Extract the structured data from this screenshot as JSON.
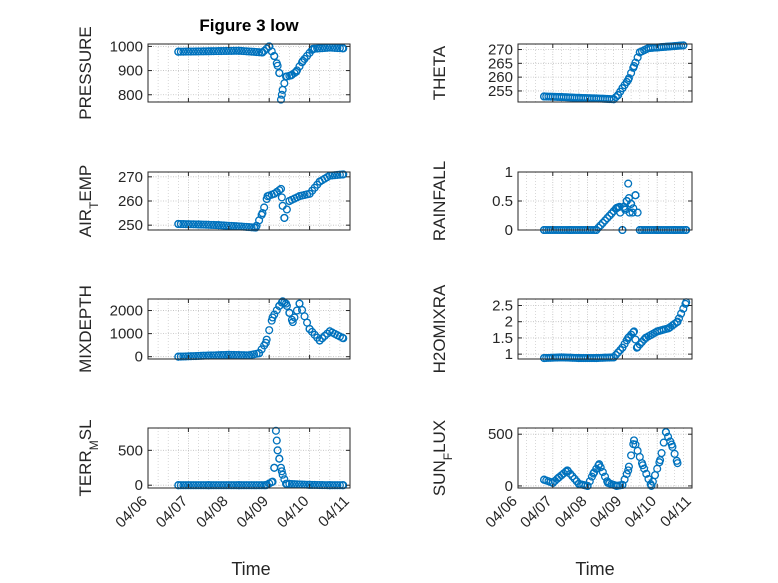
{
  "figure": {
    "marker": "open-circle",
    "marker_color": "#0072BD",
    "axes_color": "#262626",
    "grid_color": "#bfbfbf"
  },
  "chart_data": [
    {
      "type": "scatter",
      "title": "Figure 3 low",
      "ylabel": "PRESSURE",
      "xlim": [
        "04/06",
        "04/11"
      ],
      "ylim": [
        770,
        1010
      ],
      "yticks": [
        800,
        900,
        1000
      ],
      "ytick_labels": [
        "800",
        "900",
        "1000"
      ],
      "grid": true,
      "x": [
        "2016-04-06T18:00",
        "2016-04-07T12:00",
        "2016-04-08T06:00",
        "2016-04-08T20:00",
        "2016-04-09T00:00",
        "2016-04-09T03:00",
        "2016-04-09T05:00",
        "2016-04-09T06:00",
        "2016-04-09T07:00",
        "2016-04-09T08:00",
        "2016-04-09T10:00",
        "2016-04-09T13:00",
        "2016-04-09T16:00",
        "2016-04-09T20:00",
        "2016-04-10T02:00",
        "2016-04-10T12:00",
        "2016-04-10T20:00"
      ],
      "y": [
        978,
        980,
        982,
        975,
        1000,
        960,
        920,
        890,
        780,
        820,
        875,
        880,
        895,
        940,
        990,
        995,
        992
      ]
    },
    {
      "type": "scatter",
      "title": "",
      "ylabel": "THETA",
      "xlim": [
        "04/06",
        "04/11"
      ],
      "ylim": [
        251,
        272
      ],
      "yticks": [
        255,
        260,
        265,
        270
      ],
      "ytick_labels": [
        "255",
        "260",
        "265",
        "270"
      ],
      "grid": true,
      "x": [
        "2016-04-06T18:00",
        "2016-04-07T06:00",
        "2016-04-07T18:00",
        "2016-04-08T06:00",
        "2016-04-08T18:00",
        "2016-04-08T21:00",
        "2016-04-09T00:00",
        "2016-04-09T04:00",
        "2016-04-09T08:00",
        "2016-04-09T12:00",
        "2016-04-09T18:00",
        "2016-04-10T06:00",
        "2016-04-10T18:00"
      ],
      "y": [
        253,
        252.8,
        252.5,
        252.3,
        252,
        253.5,
        256,
        259,
        264,
        269,
        270.5,
        271,
        271.5
      ]
    },
    {
      "type": "scatter",
      "title": "",
      "ylabel": "AIR_TEMP",
      "xlim": [
        "04/06",
        "04/11"
      ],
      "ylim": [
        248,
        272
      ],
      "yticks": [
        250,
        260,
        270
      ],
      "ytick_labels": [
        "250",
        "260",
        "270"
      ],
      "grid": true,
      "x": [
        "2016-04-06T18:00",
        "2016-04-07T06:00",
        "2016-04-07T18:00",
        "2016-04-08T06:00",
        "2016-04-08T16:00",
        "2016-04-08T20:00",
        "2016-04-08T23:00",
        "2016-04-09T03:00",
        "2016-04-09T07:00",
        "2016-04-09T08:00",
        "2016-04-09T09:00",
        "2016-04-09T12:00",
        "2016-04-09T18:00",
        "2016-04-10T00:00",
        "2016-04-10T06:00",
        "2016-04-10T12:00",
        "2016-04-10T20:00"
      ],
      "y": [
        250.5,
        250.3,
        250,
        249.5,
        249,
        255,
        262,
        263,
        265,
        258,
        253,
        260,
        262,
        263,
        268,
        270.5,
        271
      ]
    },
    {
      "type": "scatter",
      "title": "",
      "ylabel": "RAINFALL",
      "xlim": [
        "04/06",
        "04/11"
      ],
      "ylim": [
        0,
        1
      ],
      "yticks": [
        0,
        0.5,
        1
      ],
      "ytick_labels": [
        "0",
        "0.5",
        "1"
      ],
      "grid": true,
      "x": [
        "2016-04-06T18:00",
        "2016-04-07T12:00",
        "2016-04-08T06:00",
        "2016-04-08T20:00",
        "2016-04-08T22:00",
        "2016-04-09T00:00",
        "2016-04-09T01:00",
        "2016-04-09T02:00",
        "2016-04-09T03:00",
        "2016-04-09T04:00",
        "2016-04-09T05:00",
        "2016-04-09T06:00",
        "2016-04-09T07:00",
        "2016-04-09T09:00",
        "2016-04-09T12:00",
        "2016-04-10T00:00",
        "2016-04-10T12:00",
        "2016-04-10T20:00"
      ],
      "y": [
        0,
        0,
        0,
        0.38,
        0.4,
        0,
        0.4,
        0.35,
        0.5,
        0.8,
        0.3,
        0.45,
        0.3,
        0.6,
        0,
        0,
        0,
        0
      ]
    },
    {
      "type": "scatter",
      "title": "",
      "ylabel": "MIXDEPTH",
      "xlim": [
        "04/06",
        "04/11"
      ],
      "ylim": [
        -100,
        2500
      ],
      "yticks": [
        0,
        1000,
        2000
      ],
      "ytick_labels": [
        "0",
        "1000",
        "2000"
      ],
      "grid": true,
      "x": [
        "2016-04-06T18:00",
        "2016-04-07T12:00",
        "2016-04-08T00:00",
        "2016-04-08T12:00",
        "2016-04-08T18:00",
        "2016-04-08T22:00",
        "2016-04-09T02:00",
        "2016-04-09T06:00",
        "2016-04-09T08:00",
        "2016-04-09T10:00",
        "2016-04-09T12:00",
        "2016-04-09T14:00",
        "2016-04-09T18:00",
        "2016-04-10T00:00",
        "2016-04-10T06:00",
        "2016-04-10T12:00",
        "2016-04-10T20:00"
      ],
      "y": [
        0,
        50,
        80,
        60,
        150,
        600,
        1700,
        2200,
        2400,
        2300,
        1900,
        1500,
        2300,
        1200,
        700,
        1100,
        800
      ]
    },
    {
      "type": "scatter",
      "title": "",
      "ylabel": "H2OMIXRA",
      "xlim": [
        "04/06",
        "04/11"
      ],
      "ylim": [
        0.85,
        2.7
      ],
      "yticks": [
        1,
        1.5,
        2,
        2.5
      ],
      "ytick_labels": [
        "1",
        "1.5",
        "2",
        "2.5"
      ],
      "grid": true,
      "x": [
        "2016-04-06T18:00",
        "2016-04-07T06:00",
        "2016-04-07T18:00",
        "2016-04-08T06:00",
        "2016-04-08T18:00",
        "2016-04-09T00:00",
        "2016-04-09T04:00",
        "2016-04-09T08:00",
        "2016-04-09T10:00",
        "2016-04-09T16:00",
        "2016-04-10T00:00",
        "2016-04-10T08:00",
        "2016-04-10T14:00",
        "2016-04-10T20:00"
      ],
      "y": [
        0.88,
        0.9,
        0.88,
        0.88,
        0.9,
        1.2,
        1.5,
        1.7,
        1.2,
        1.5,
        1.7,
        1.8,
        2.0,
        2.6
      ]
    },
    {
      "type": "scatter",
      "title": "",
      "ylabel": "TERR_MSL",
      "xlim": [
        "04/06",
        "04/11"
      ],
      "ylim": [
        -40,
        820
      ],
      "yticks": [
        0,
        500
      ],
      "ytick_labels": [
        "0",
        "500"
      ],
      "grid": true,
      "x": [
        "2016-04-06T18:00",
        "2016-04-07T12:00",
        "2016-04-08T06:00",
        "2016-04-08T22:00",
        "2016-04-09T02:00",
        "2016-04-09T03:00",
        "2016-04-09T04:00",
        "2016-04-09T05:00",
        "2016-04-09T06:00",
        "2016-04-09T07:00",
        "2016-04-09T08:00",
        "2016-04-09T10:00",
        "2016-04-10T00:00",
        "2016-04-10T12:00",
        "2016-04-10T20:00"
      ],
      "y": [
        0,
        0,
        0,
        0,
        50,
        250,
        780,
        500,
        380,
        250,
        150,
        20,
        5,
        0,
        0
      ]
    },
    {
      "type": "scatter",
      "title": "",
      "ylabel": "SUN_FLUX",
      "xlim": [
        "04/06",
        "04/11"
      ],
      "ylim": [
        -20,
        560
      ],
      "yticks": [
        0,
        500
      ],
      "ytick_labels": [
        "0",
        "500"
      ],
      "grid": true,
      "x": [
        "2016-04-06T18:00",
        "2016-04-07T00:00",
        "2016-04-07T04:00",
        "2016-04-07T10:00",
        "2016-04-07T18:00",
        "2016-04-08T00:00",
        "2016-04-08T04:00",
        "2016-04-08T08:00",
        "2016-04-08T14:00",
        "2016-04-08T20:00",
        "2016-04-09T00:00",
        "2016-04-09T04:00",
        "2016-04-09T08:00",
        "2016-04-09T14:00",
        "2016-04-09T20:00",
        "2016-04-10T02:00",
        "2016-04-10T06:00",
        "2016-04-10T10:00",
        "2016-04-10T14:00"
      ],
      "y": [
        60,
        30,
        80,
        150,
        20,
        0,
        120,
        210,
        30,
        0,
        10,
        150,
        440,
        200,
        0,
        250,
        520,
        400,
        220
      ]
    }
  ],
  "xticks": [
    "04/06",
    "04/07",
    "04/08",
    "04/09",
    "04/10",
    "04/11"
  ],
  "xlabel": "Time"
}
